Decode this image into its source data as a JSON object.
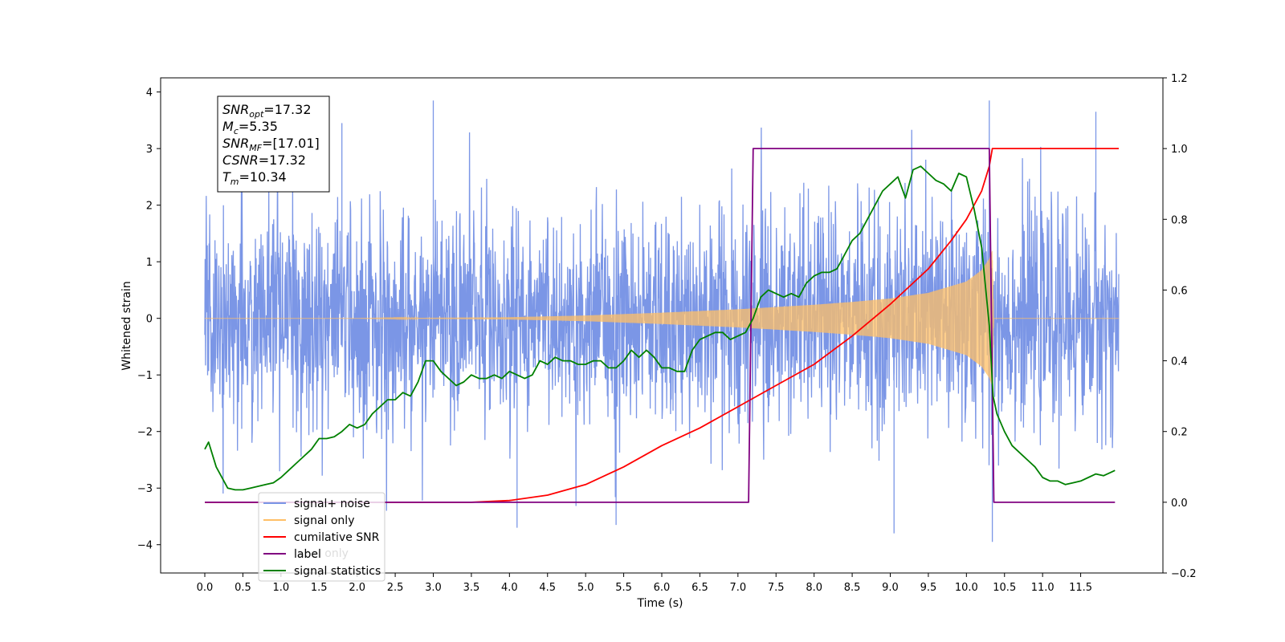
{
  "chart_data": {
    "type": "line",
    "xlabel": "Time (s)",
    "ylabel": "Whitened strain",
    "xlim": [
      -0.58,
      12.58
    ],
    "ylim": [
      -4.5,
      4.25
    ],
    "y2lim": [
      -0.2,
      1.2
    ],
    "x_ticks": [
      0.0,
      0.5,
      1.0,
      1.5,
      2.0,
      2.5,
      3.0,
      3.5,
      4.0,
      4.5,
      5.0,
      5.5,
      6.0,
      6.5,
      7.0,
      7.5,
      8.0,
      8.5,
      9.0,
      9.5,
      10.0,
      10.5,
      11.0,
      11.5
    ],
    "x_tick_labels": [
      "0.0",
      "0.5",
      "1.0",
      "1.5",
      "2.0",
      "2.5",
      "3.0",
      "3.5",
      "4.0",
      "4.5",
      "5.0",
      "5.5",
      "6.0",
      "6.5",
      "7.0",
      "7.5",
      "8.0",
      "8.5",
      "9.0",
      "9.5",
      "10.0",
      "10.5",
      "11.0",
      "11.5"
    ],
    "y_ticks": [
      -4,
      -3,
      -2,
      -1,
      0,
      1,
      2,
      3,
      4
    ],
    "y_tick_labels": [
      "−4",
      "−3",
      "−2",
      "−1",
      "0",
      "1",
      "2",
      "3",
      "4"
    ],
    "y2_ticks": [
      -0.2,
      0.0,
      0.2,
      0.4,
      0.6,
      0.8,
      1.0,
      1.2
    ],
    "y2_tick_labels": [
      "−0.2",
      "0.0",
      "0.2",
      "0.4",
      "0.6",
      "0.8",
      "1.0",
      "1.2"
    ],
    "annotation": [
      {
        "name": "SNR",
        "sub": "opt",
        "value": "=17.32"
      },
      {
        "name": "M",
        "sub": "c",
        "value": "=5.35"
      },
      {
        "name": "SNR",
        "sub": "MF",
        "value": "=[17.01]"
      },
      {
        "name": "CSNR",
        "sub": "",
        "value": "=17.32"
      },
      {
        "name": "T",
        "sub": "m",
        "value": "=10.34"
      }
    ],
    "legend": {
      "placement": "lower-left",
      "entries": [
        {
          "label": "signal+ noise",
          "color": "#7b96e6"
        },
        {
          "label": "signal only",
          "color": "#ffbf66"
        },
        {
          "label": "cumilative SNR",
          "color": "#ff0000"
        },
        {
          "label": "label",
          "color": "#800080"
        },
        {
          "label": "signal statistics",
          "color": "#008000"
        }
      ],
      "hidden_label": "label only"
    },
    "series": [
      {
        "name": "signal+ noise",
        "axis": "left",
        "color": "#7b96e6",
        "description": "whitened noise, roughly ±1.5 with spikes to ±3.9",
        "x_range": [
          0.0,
          12.0
        ],
        "envelope": 1.5,
        "extremes": [
          {
            "x": 3.0,
            "y": 3.85
          },
          {
            "x": 1.8,
            "y": 3.45
          },
          {
            "x": 10.3,
            "y": 3.85
          },
          {
            "x": 11.7,
            "y": 3.65
          },
          {
            "x": 4.1,
            "y": -3.7
          },
          {
            "x": 10.34,
            "y": -3.95
          },
          {
            "x": 9.05,
            "y": -3.8
          },
          {
            "x": 5.4,
            "y": -3.65
          }
        ]
      },
      {
        "name": "signal only",
        "axis": "left",
        "color": "#ffbf66",
        "description": "chirp with growing amplitude, merger at 10.34 s",
        "amplitude": {
          "x": [
            0.0,
            2.0,
            4.0,
            5.0,
            6.0,
            7.0,
            8.0,
            8.5,
            9.0,
            9.5,
            10.0,
            10.2,
            10.3,
            10.34,
            10.36,
            12.0
          ],
          "y": [
            0.0,
            0.0,
            0.02,
            0.05,
            0.1,
            0.16,
            0.24,
            0.29,
            0.35,
            0.45,
            0.65,
            0.85,
            1.05,
            1.2,
            0.0,
            0.0
          ]
        }
      },
      {
        "name": "cumilative SNR",
        "axis": "right",
        "color": "#ff0000",
        "x": [
          0.0,
          3.5,
          4.0,
          4.5,
          5.0,
          5.5,
          6.0,
          6.5,
          7.0,
          7.5,
          8.0,
          8.5,
          9.0,
          9.5,
          9.8,
          10.0,
          10.2,
          10.3,
          10.34,
          12.0
        ],
        "y": [
          0.0,
          0.0,
          0.005,
          0.02,
          0.05,
          0.1,
          0.16,
          0.21,
          0.27,
          0.33,
          0.39,
          0.47,
          0.56,
          0.66,
          0.74,
          0.8,
          0.88,
          0.95,
          1.0,
          1.0
        ]
      },
      {
        "name": "label",
        "axis": "right",
        "color": "#800080",
        "x": [
          0.0,
          7.14,
          7.2,
          10.3,
          10.36,
          11.95
        ],
        "y": [
          0.0,
          0.0,
          1.0,
          1.0,
          0.0,
          0.0
        ]
      },
      {
        "name": "signal statistics",
        "axis": "right",
        "color": "#008000",
        "x": [
          0.0,
          0.05,
          0.15,
          0.3,
          0.4,
          0.5,
          0.6,
          0.7,
          0.8,
          0.9,
          1.0,
          1.1,
          1.2,
          1.3,
          1.4,
          1.5,
          1.6,
          1.7,
          1.8,
          1.9,
          2.0,
          2.1,
          2.2,
          2.3,
          2.4,
          2.5,
          2.6,
          2.7,
          2.8,
          2.9,
          3.0,
          3.1,
          3.2,
          3.3,
          3.4,
          3.5,
          3.6,
          3.7,
          3.8,
          3.9,
          4.0,
          4.1,
          4.2,
          4.3,
          4.4,
          4.5,
          4.6,
          4.7,
          4.8,
          4.9,
          5.0,
          5.1,
          5.2,
          5.3,
          5.4,
          5.5,
          5.6,
          5.7,
          5.8,
          5.9,
          6.0,
          6.1,
          6.2,
          6.3,
          6.4,
          6.5,
          6.6,
          6.7,
          6.8,
          6.9,
          7.0,
          7.1,
          7.2,
          7.3,
          7.4,
          7.5,
          7.6,
          7.7,
          7.8,
          7.9,
          8.0,
          8.1,
          8.2,
          8.3,
          8.4,
          8.5,
          8.6,
          8.7,
          8.8,
          8.9,
          9.0,
          9.1,
          9.2,
          9.3,
          9.4,
          9.5,
          9.6,
          9.7,
          9.8,
          9.9,
          10.0,
          10.1,
          10.2,
          10.3,
          10.35,
          10.4,
          10.5,
          10.6,
          10.7,
          10.8,
          10.9,
          11.0,
          11.1,
          11.2,
          11.3,
          11.4,
          11.5,
          11.6,
          11.7,
          11.8,
          11.9,
          11.95
        ],
        "y": [
          0.15,
          0.17,
          0.1,
          0.04,
          0.035,
          0.035,
          0.04,
          0.045,
          0.05,
          0.055,
          0.07,
          0.09,
          0.11,
          0.13,
          0.15,
          0.18,
          0.18,
          0.185,
          0.2,
          0.22,
          0.21,
          0.22,
          0.25,
          0.27,
          0.29,
          0.29,
          0.31,
          0.3,
          0.34,
          0.4,
          0.4,
          0.37,
          0.35,
          0.33,
          0.34,
          0.36,
          0.35,
          0.35,
          0.36,
          0.35,
          0.37,
          0.36,
          0.35,
          0.36,
          0.4,
          0.39,
          0.41,
          0.4,
          0.4,
          0.39,
          0.39,
          0.4,
          0.4,
          0.38,
          0.38,
          0.4,
          0.43,
          0.41,
          0.43,
          0.41,
          0.38,
          0.38,
          0.37,
          0.37,
          0.43,
          0.46,
          0.47,
          0.48,
          0.48,
          0.46,
          0.47,
          0.48,
          0.52,
          0.58,
          0.6,
          0.59,
          0.58,
          0.59,
          0.58,
          0.62,
          0.64,
          0.65,
          0.65,
          0.66,
          0.7,
          0.74,
          0.76,
          0.8,
          0.84,
          0.88,
          0.9,
          0.92,
          0.86,
          0.94,
          0.95,
          0.93,
          0.91,
          0.9,
          0.88,
          0.93,
          0.92,
          0.83,
          0.72,
          0.5,
          0.3,
          0.25,
          0.2,
          0.16,
          0.14,
          0.12,
          0.1,
          0.07,
          0.06,
          0.06,
          0.05,
          0.055,
          0.06,
          0.07,
          0.08,
          0.075,
          0.085,
          0.09
        ]
      }
    ]
  }
}
